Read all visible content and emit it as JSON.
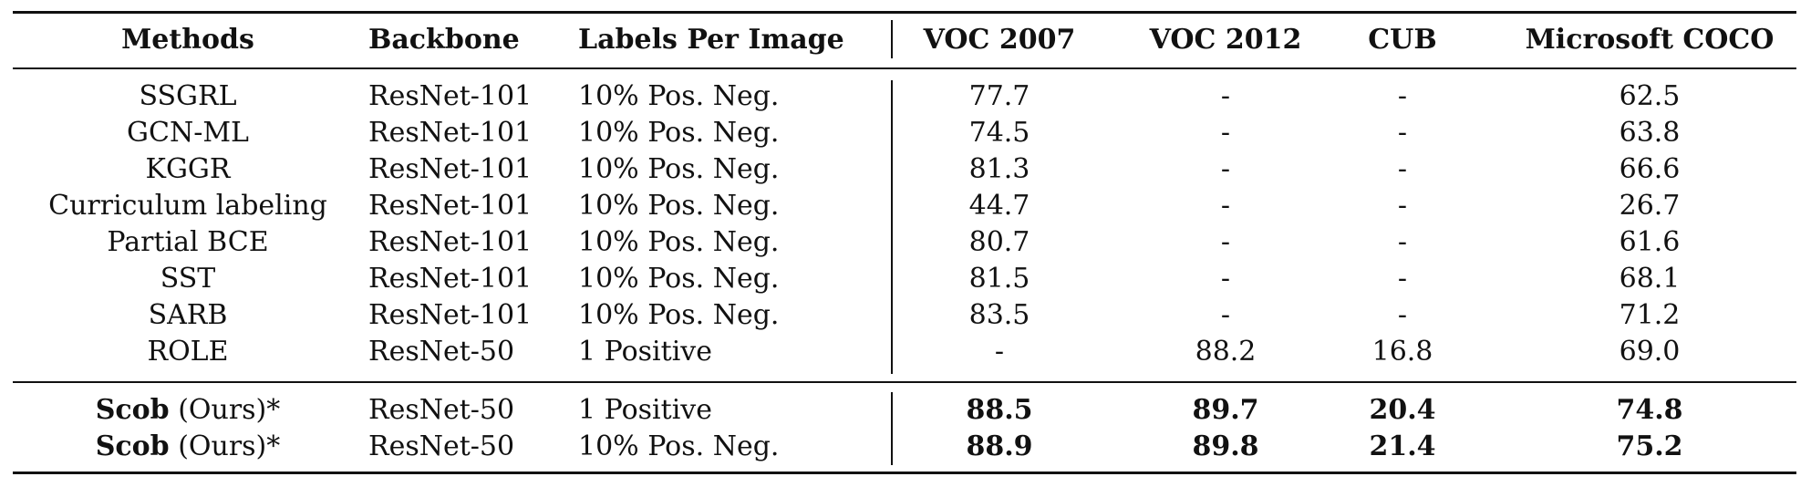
{
  "table": {
    "headers": [
      "Methods",
      "Backbone",
      "Labels Per Image",
      "VOC 2007",
      "VOC 2012",
      "CUB",
      "Microsoft COCO"
    ],
    "rows": [
      {
        "method": "SSGRL",
        "backbone": "ResNet-101",
        "labels": "10% Pos. Neg.",
        "voc2007": "77.7",
        "voc2012": "-",
        "cub": "-",
        "coco": "62.5"
      },
      {
        "method": "GCN-ML",
        "backbone": "ResNet-101",
        "labels": "10% Pos. Neg.",
        "voc2007": "74.5",
        "voc2012": "-",
        "cub": "-",
        "coco": "63.8"
      },
      {
        "method": "KGGR",
        "backbone": "ResNet-101",
        "labels": "10% Pos. Neg.",
        "voc2007": "81.3",
        "voc2012": "-",
        "cub": "-",
        "coco": "66.6"
      },
      {
        "method": "Curriculum labeling",
        "backbone": "ResNet-101",
        "labels": "10% Pos. Neg.",
        "voc2007": "44.7",
        "voc2012": "-",
        "cub": "-",
        "coco": "26.7"
      },
      {
        "method": "Partial BCE",
        "backbone": "ResNet-101",
        "labels": "10% Pos. Neg.",
        "voc2007": "80.7",
        "voc2012": "-",
        "cub": "-",
        "coco": "61.6"
      },
      {
        "method": "SST",
        "backbone": "ResNet-101",
        "labels": "10% Pos. Neg.",
        "voc2007": "81.5",
        "voc2012": "-",
        "cub": "-",
        "coco": "68.1"
      },
      {
        "method": "SARB",
        "backbone": "ResNet-101",
        "labels": "10% Pos. Neg.",
        "voc2007": "83.5",
        "voc2012": "-",
        "cub": "-",
        "coco": "71.2"
      },
      {
        "method": "ROLE",
        "backbone": "ResNet-50",
        "labels": "1 Positive",
        "voc2007": "-",
        "voc2012": "88.2",
        "cub": "16.8",
        "coco": "69.0"
      }
    ],
    "ours": [
      {
        "method_bold": "Scob",
        "method_suffix": " (Ours)*",
        "backbone": "ResNet-50",
        "labels": "1 Positive",
        "voc2007": "88.5",
        "voc2012": "89.7",
        "cub": "20.4",
        "coco": "74.8"
      },
      {
        "method_bold": "Scob",
        "method_suffix": " (Ours)*",
        "backbone": "ResNet-50",
        "labels": "10% Pos. Neg.",
        "voc2007": "88.9",
        "voc2012": "89.8",
        "cub": "21.4",
        "coco": "75.2"
      }
    ]
  }
}
